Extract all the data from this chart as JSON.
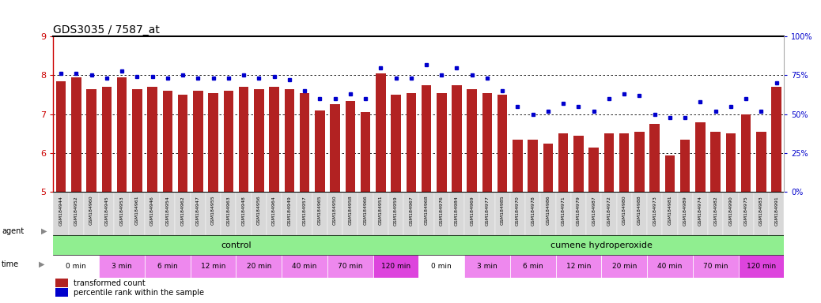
{
  "title": "GDS3035 / 7587_at",
  "samples": [
    "GSM184944",
    "GSM184952",
    "GSM184960",
    "GSM184945",
    "GSM184953",
    "GSM184961",
    "GSM184946",
    "GSM184954",
    "GSM184962",
    "GSM184947",
    "GSM184955",
    "GSM184963",
    "GSM184948",
    "GSM184956",
    "GSM184964",
    "GSM184949",
    "GSM184957",
    "GSM184965",
    "GSM184950",
    "GSM184958",
    "GSM184966",
    "GSM184951",
    "GSM184959",
    "GSM184967",
    "GSM184968",
    "GSM184976",
    "GSM184984",
    "GSM184969",
    "GSM184977",
    "GSM184985",
    "GSM184970",
    "GSM184978",
    "GSM184986",
    "GSM184971",
    "GSM184979",
    "GSM184987",
    "GSM184972",
    "GSM184980",
    "GSM184988",
    "GSM184973",
    "GSM184981",
    "GSM184989",
    "GSM184974",
    "GSM184982",
    "GSM184990",
    "GSM184975",
    "GSM184983",
    "GSM184991"
  ],
  "transformed_count": [
    7.85,
    7.95,
    7.65,
    7.7,
    7.95,
    7.65,
    7.7,
    7.6,
    7.5,
    7.6,
    7.55,
    7.6,
    7.7,
    7.65,
    7.7,
    7.65,
    7.55,
    7.1,
    7.25,
    7.35,
    7.05,
    8.05,
    7.5,
    7.55,
    7.75,
    7.55,
    7.75,
    7.65,
    7.55,
    7.5,
    6.35,
    6.35,
    6.25,
    6.5,
    6.45,
    6.15,
    6.5,
    6.5,
    6.55,
    6.75,
    5.95,
    6.35,
    6.8,
    6.55,
    6.5,
    7.0,
    6.55,
    7.7
  ],
  "percentile_rank": [
    76,
    76,
    75,
    73,
    78,
    74,
    74,
    73,
    75,
    73,
    73,
    73,
    75,
    73,
    74,
    72,
    65,
    60,
    60,
    63,
    60,
    80,
    73,
    73,
    82,
    75,
    80,
    75,
    73,
    65,
    55,
    50,
    52,
    57,
    55,
    52,
    60,
    63,
    62,
    50,
    48,
    48,
    58,
    52,
    55,
    60,
    52,
    70
  ],
  "ylim_left": [
    5,
    9
  ],
  "ylim_right": [
    0,
    100
  ],
  "yticks_left": [
    5,
    6,
    7,
    8,
    9
  ],
  "yticks_right": [
    0,
    25,
    50,
    75,
    100
  ],
  "bar_color": "#b22222",
  "dot_color": "#0000cc",
  "agent_labels": [
    "control",
    "cumene hydroperoxide"
  ],
  "agent_ranges": [
    [
      0,
      24
    ],
    [
      24,
      48
    ]
  ],
  "agent_color": "#90ee90",
  "time_labels": [
    "0 min",
    "3 min",
    "6 min",
    "12 min",
    "20 min",
    "40 min",
    "70 min",
    "120 min"
  ],
  "time_colors": [
    "#ffffff",
    "#ee88ee",
    "#ee88ee",
    "#ee88ee",
    "#ee88ee",
    "#ee88ee",
    "#ee88ee",
    "#dd44dd"
  ],
  "background_color": "#ffffff",
  "left_yaxis_color": "#cc0000",
  "right_yaxis_color": "#0000cc",
  "tick_label_bg": "#dddddd"
}
